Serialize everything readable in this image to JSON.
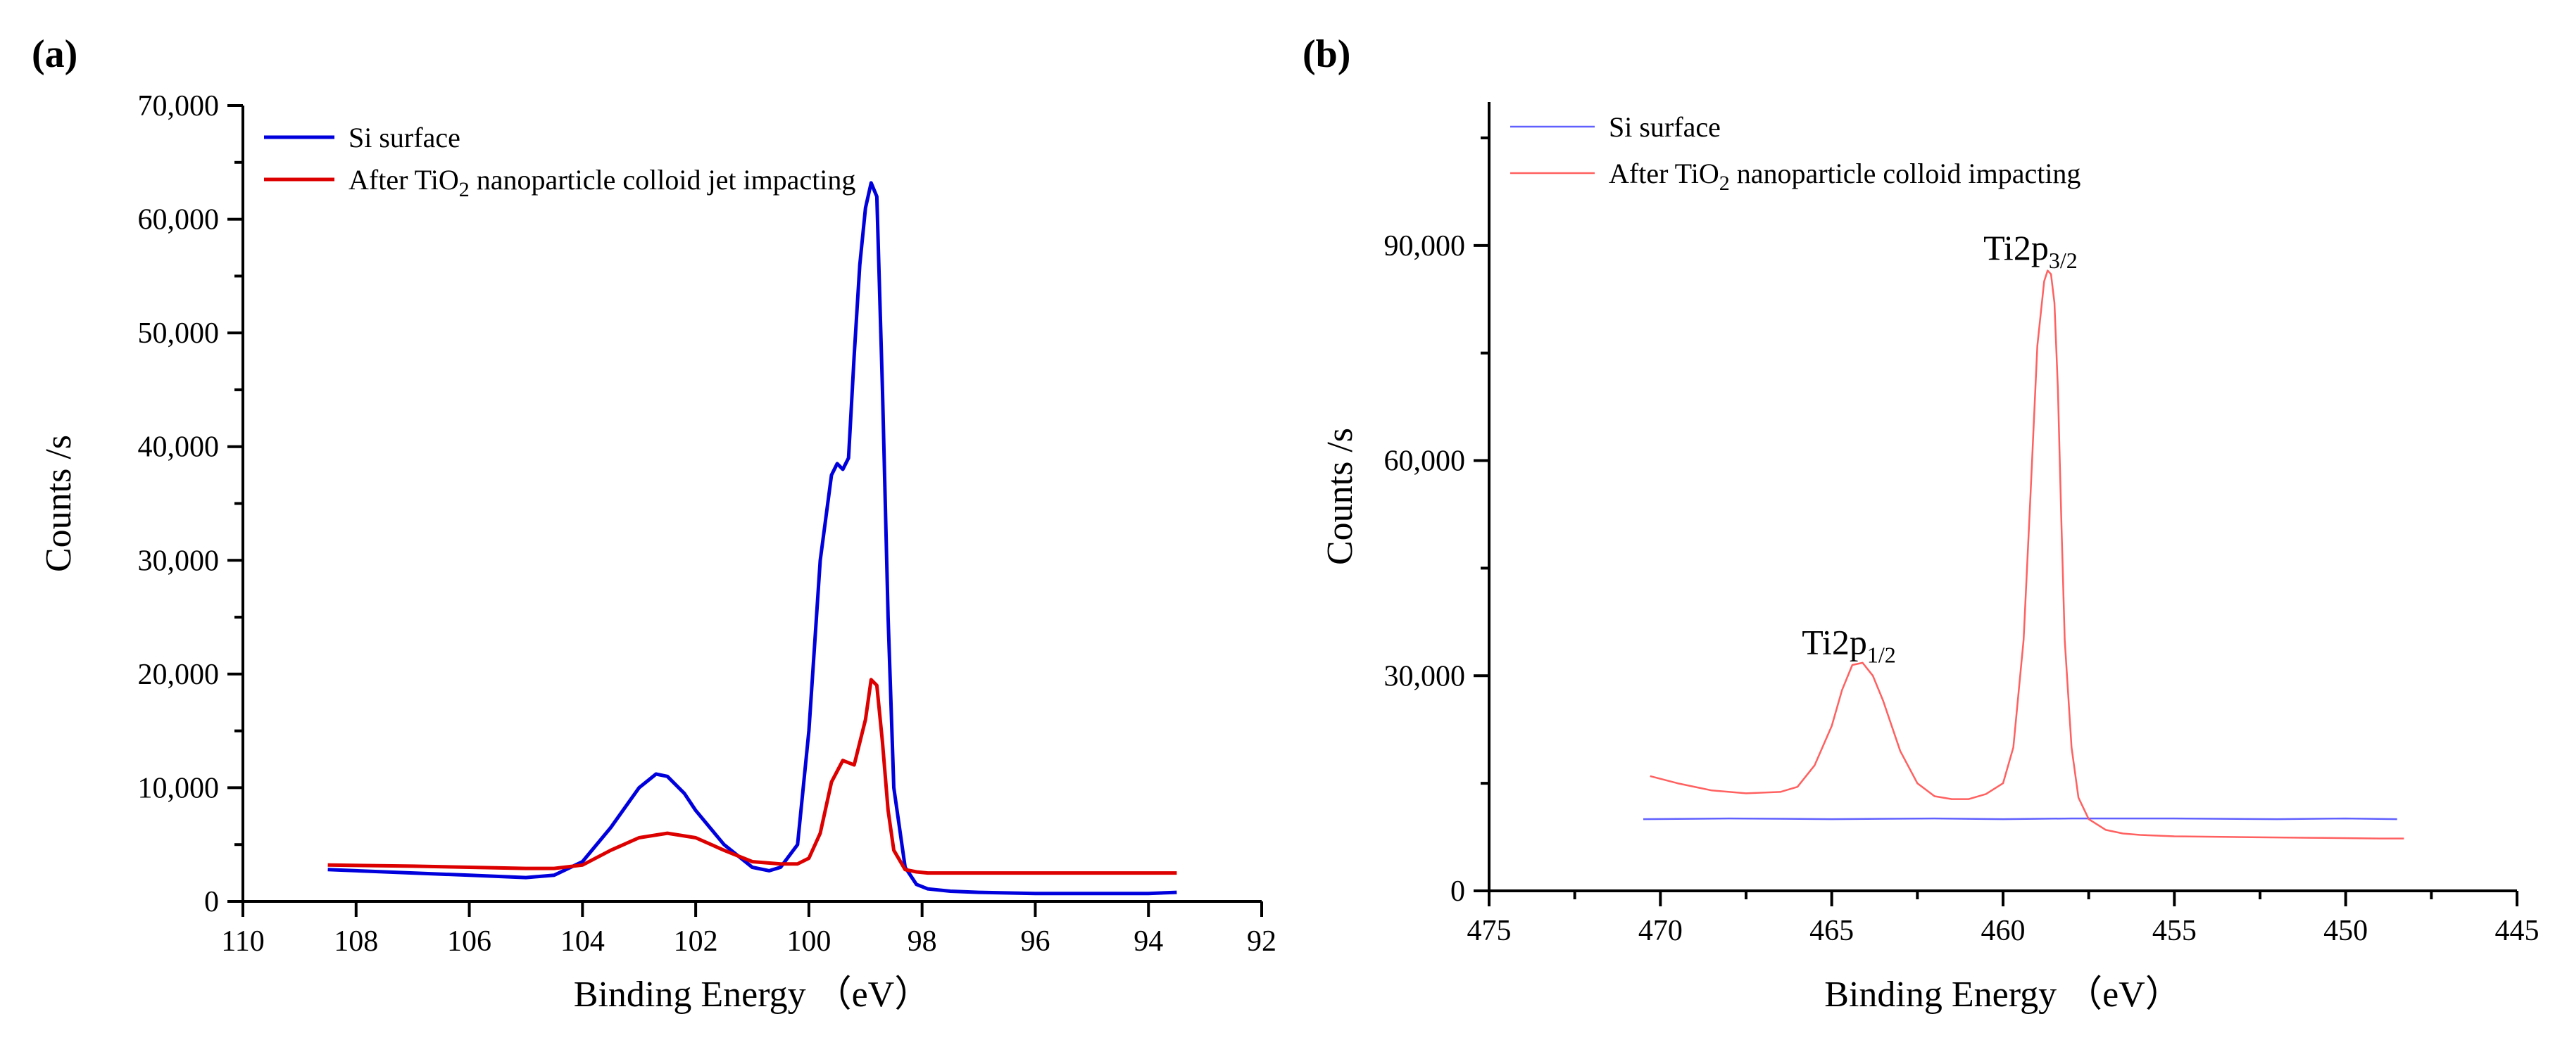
{
  "chart_data": [
    {
      "id": "a",
      "type": "line",
      "panel_label": "(a)",
      "xlabel": "Binding Energy  （eV）",
      "ylabel": "Counts /s",
      "xlim": [
        110,
        92
      ],
      "ylim": [
        0,
        70000
      ],
      "xticks": [
        110,
        108,
        106,
        104,
        102,
        100,
        98,
        96,
        94,
        92
      ],
      "xtick_labels": [
        "110",
        "108",
        "106",
        "104",
        "102",
        "100",
        "98",
        "96",
        "94",
        "92"
      ],
      "yticks": [
        0,
        10000,
        20000,
        30000,
        40000,
        50000,
        60000,
        70000
      ],
      "ytick_labels": [
        "0",
        "10,000",
        "20,000",
        "30,000",
        "40,000",
        "50,000",
        "60,000",
        "70,000"
      ],
      "legend_position": "top-left",
      "series": [
        {
          "name": "Si surface",
          "legend": {
            "before": "Si surface",
            "sub": "",
            "after": ""
          },
          "color": "#0000dd",
          "x": [
            108.5,
            107,
            106,
            105,
            104.5,
            104,
            103.5,
            103,
            102.7,
            102.5,
            102.2,
            102,
            101.5,
            101,
            100.7,
            100.5,
            100.2,
            100,
            99.8,
            99.6,
            99.5,
            99.4,
            99.3,
            99.2,
            99.1,
            99.0,
            98.9,
            98.8,
            98.7,
            98.6,
            98.5,
            98.3,
            98.1,
            97.9,
            97.5,
            97,
            96,
            95,
            94,
            93.5
          ],
          "y": [
            2800,
            2500,
            2300,
            2100,
            2300,
            3500,
            6500,
            10000,
            11200,
            11000,
            9500,
            8000,
            5000,
            3000,
            2700,
            3000,
            5000,
            15000,
            30000,
            37500,
            38500,
            38000,
            39000,
            48000,
            56000,
            61000,
            63200,
            62000,
            45000,
            25000,
            10000,
            3000,
            1500,
            1100,
            900,
            800,
            700,
            700,
            700,
            800
          ]
        },
        {
          "name": "After TiO2 nanoparticle colloid jet impacting",
          "legend": {
            "before": "After TiO",
            "sub": "2",
            "after": "  nanoparticle colloid jet impacting"
          },
          "color": "#dd0000",
          "x": [
            108.5,
            107,
            106,
            105,
            104.5,
            104,
            103.5,
            103,
            102.5,
            102,
            101.5,
            101,
            100.5,
            100.2,
            100,
            99.8,
            99.6,
            99.4,
            99.3,
            99.2,
            99.0,
            98.9,
            98.8,
            98.7,
            98.6,
            98.5,
            98.3,
            98.1,
            97.9,
            97.5,
            97,
            96,
            95,
            94,
            93.5
          ],
          "y": [
            3200,
            3100,
            3000,
            2900,
            2900,
            3200,
            4500,
            5600,
            6000,
            5600,
            4500,
            3500,
            3300,
            3300,
            3800,
            6000,
            10500,
            12400,
            12200,
            12000,
            16000,
            19500,
            19000,
            14000,
            8000,
            4500,
            2800,
            2600,
            2500,
            2500,
            2500,
            2500,
            2500,
            2500,
            2500
          ]
        }
      ],
      "annotations": []
    },
    {
      "id": "b",
      "type": "line",
      "panel_label": "(b)",
      "xlabel": "Binding Energy  （eV）",
      "ylabel": "Counts /s",
      "xlim": [
        475,
        445
      ],
      "ylim": [
        0,
        110000
      ],
      "xticks": [
        475,
        470,
        465,
        460,
        455,
        450,
        445
      ],
      "xtick_labels": [
        "475",
        "470",
        "465",
        "460",
        "455",
        "450",
        "445"
      ],
      "yticks": [
        0,
        30000,
        60000,
        90000
      ],
      "ytick_labels": [
        "0",
        "30,000",
        "60,000",
        "90,000"
      ],
      "legend_position": "top-left",
      "series": [
        {
          "name": "Si surface",
          "legend": {
            "before": "Si surface",
            "sub": "",
            "after": ""
          },
          "color": "#6060ff",
          "x": [
            470.5,
            468,
            465,
            462,
            460,
            458,
            455,
            452,
            450,
            448.5
          ],
          "y": [
            10000,
            10100,
            10000,
            10100,
            10000,
            10100,
            10100,
            10000,
            10100,
            10000
          ]
        },
        {
          "name": "After TiO2 nanoparticle colloid impacting",
          "legend": {
            "before": "After TiO",
            "sub": "2",
            "after": " nanoparticle colloid impacting"
          },
          "color": "#ff6060",
          "x": [
            470.3,
            469.5,
            468.5,
            467.5,
            466.5,
            466,
            465.5,
            465,
            464.7,
            464.4,
            464.1,
            463.8,
            463.5,
            463,
            462.5,
            462,
            461.5,
            461,
            460.5,
            460,
            459.7,
            459.4,
            459.2,
            459.0,
            458.8,
            458.7,
            458.6,
            458.5,
            458.4,
            458.3,
            458.2,
            458.0,
            457.8,
            457.5,
            457,
            456.5,
            456,
            455,
            453,
            451,
            449,
            448.3
          ],
          "y": [
            16000,
            15000,
            14000,
            13600,
            13800,
            14500,
            17500,
            23000,
            28000,
            31500,
            31800,
            30000,
            26500,
            19500,
            15000,
            13200,
            12800,
            12800,
            13500,
            15000,
            20000,
            35000,
            55000,
            76000,
            85000,
            86500,
            86000,
            82000,
            70000,
            52000,
            35000,
            20000,
            13000,
            10000,
            8500,
            8000,
            7800,
            7600,
            7500,
            7400,
            7300,
            7300
          ]
        }
      ],
      "annotations": [
        {
          "base": "Ti2p",
          "sub": "1/2",
          "x": 464.5,
          "y": 33000
        },
        {
          "base": "Ti2p",
          "sub": "3/2",
          "x": 459.2,
          "y": 88000
        }
      ]
    }
  ]
}
